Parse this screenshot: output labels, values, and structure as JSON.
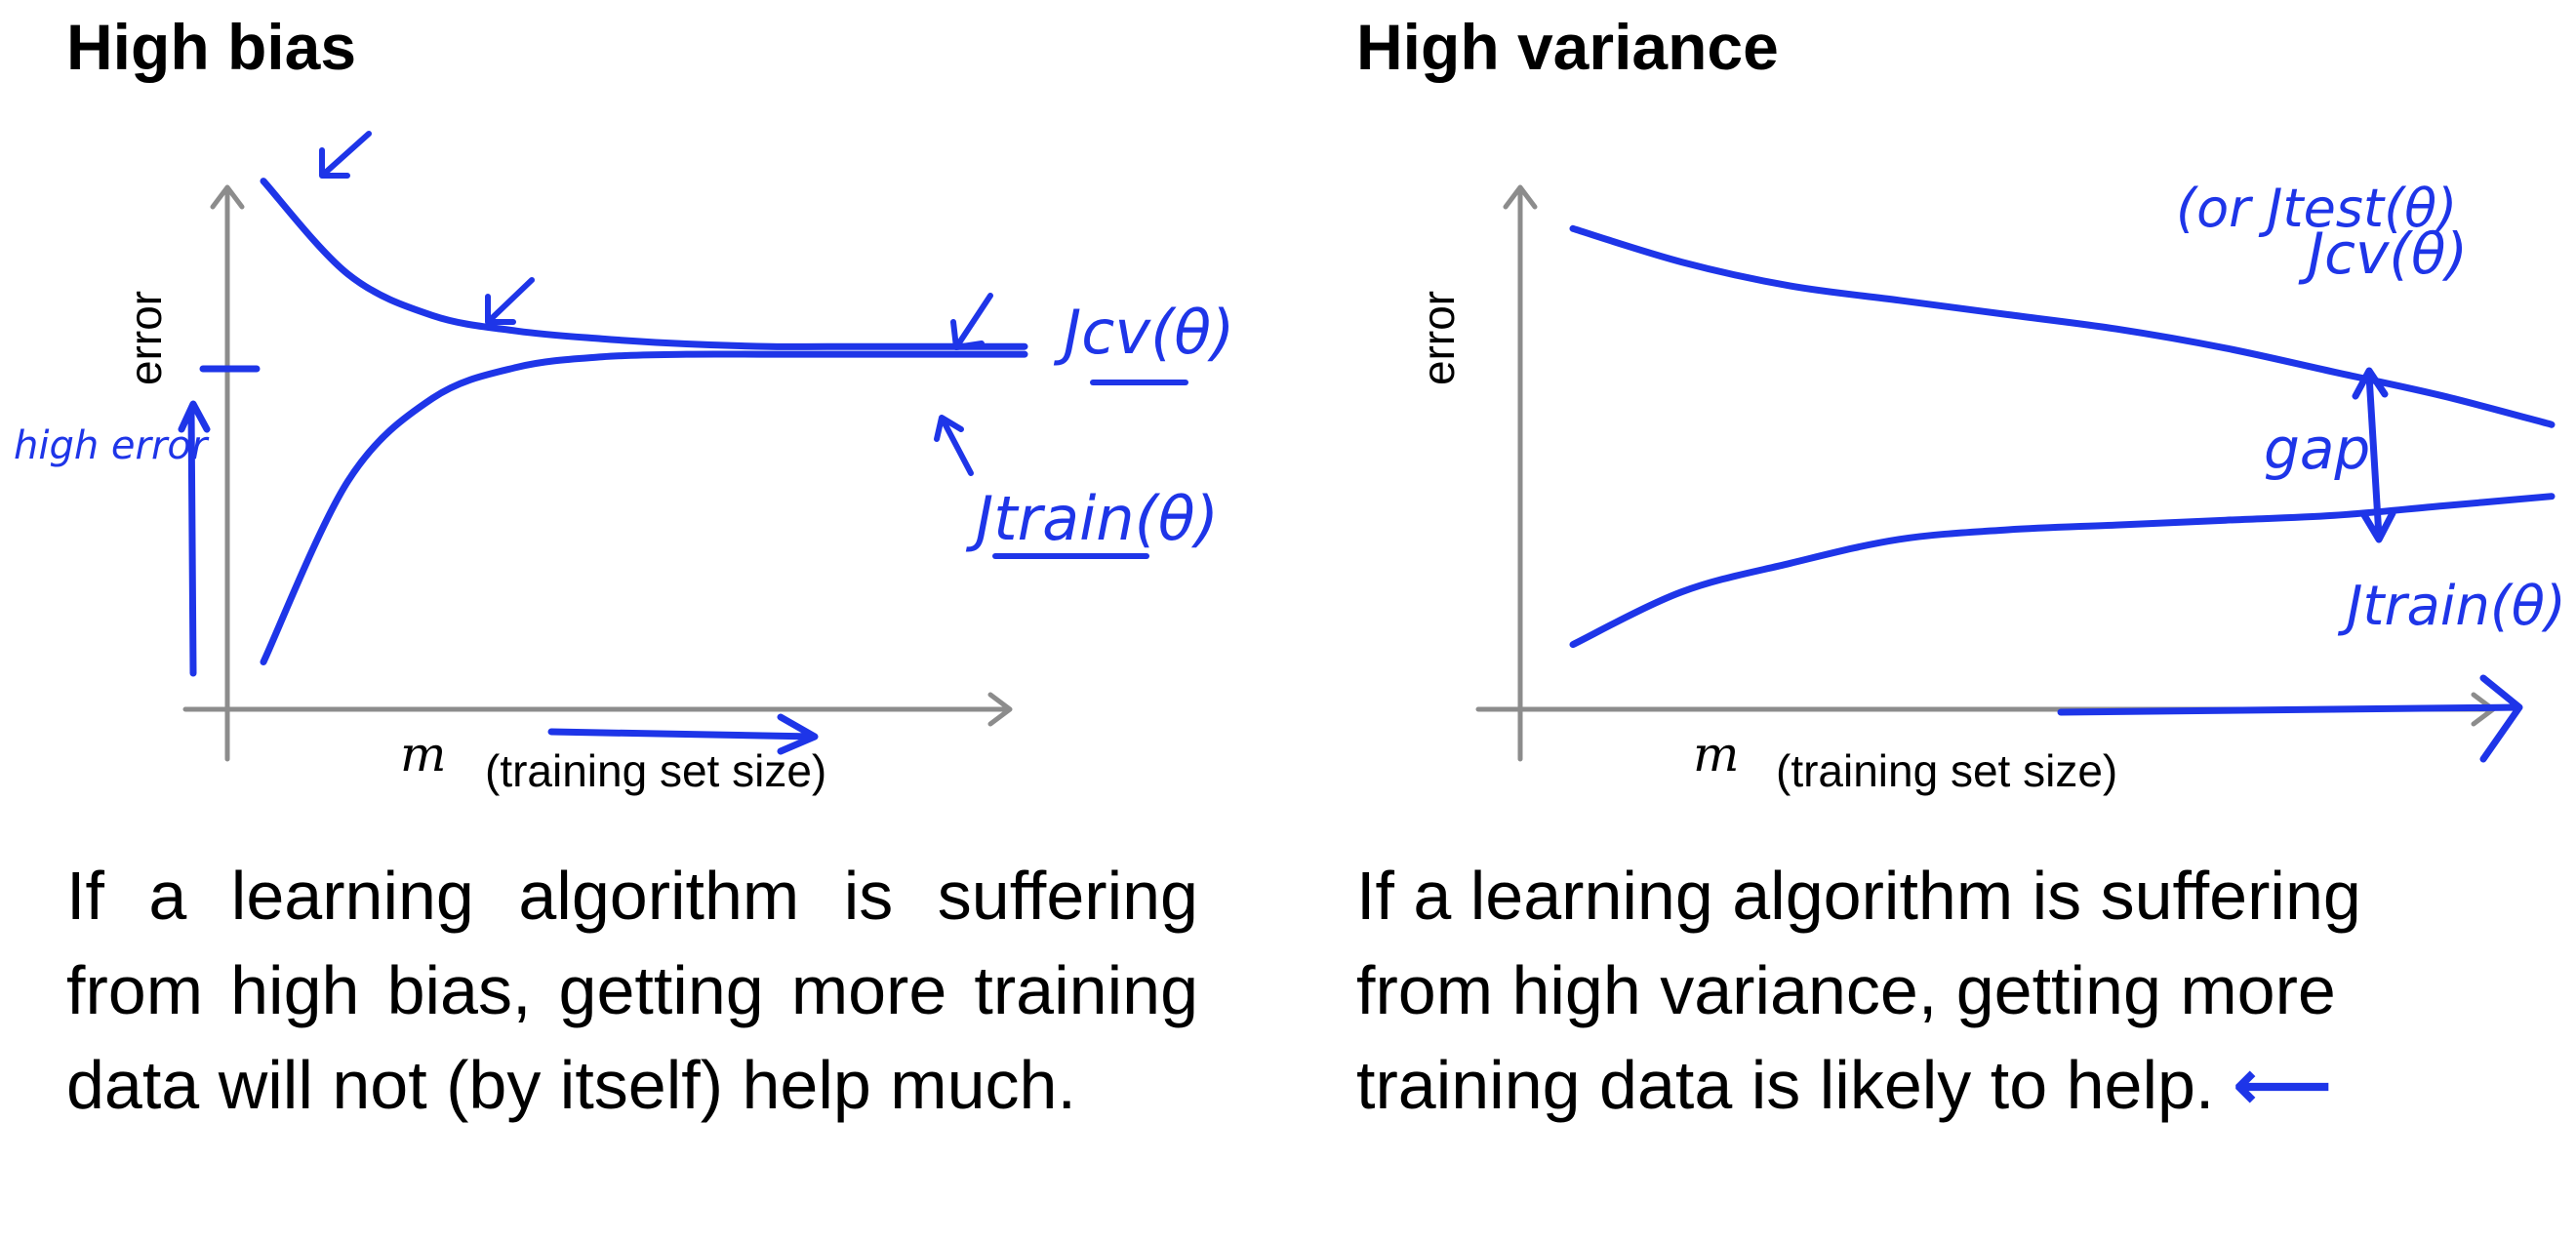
{
  "panels": {
    "left": {
      "title": "High bias",
      "ylabel": "error",
      "xlabel_symbol": "m",
      "xlabel_text": "(training set size)",
      "annotations": {
        "cv_curve": "Jcv(θ)",
        "train_curve": "Jtrain(θ)",
        "high_error": "high error"
      },
      "caption": "If a learning algorithm is suffering from high bias, getting more training data will not (by itself) help much."
    },
    "right": {
      "title": "High variance",
      "ylabel": "error",
      "xlabel_symbol": "m",
      "xlabel_text": "(training set size)",
      "annotations": {
        "cv_curve": "Jcv(θ)",
        "test_curve": "(or Jtest(θ)",
        "train_curve": "Jtrain(θ)",
        "gap": "gap"
      },
      "caption": "If a learning algorithm is suffering from high variance, getting more training data is likely to help.",
      "caption_arrow": "⟵"
    }
  },
  "colors": {
    "ink": "#1e35e8",
    "axis": "#8c8c8c",
    "text": "#000000"
  },
  "chart_data": [
    {
      "type": "line",
      "title": "High bias",
      "xlabel": "m (training set size)",
      "ylabel": "error",
      "x": [
        1,
        2,
        3,
        4,
        5,
        6,
        7,
        8,
        9,
        10
      ],
      "series": [
        {
          "name": "Jcv(θ)",
          "values": [
            0.98,
            0.8,
            0.72,
            0.69,
            0.675,
            0.665,
            0.66,
            0.66,
            0.66,
            0.66
          ]
        },
        {
          "name": "Jtrain(θ)",
          "values": [
            0.05,
            0.4,
            0.56,
            0.62,
            0.64,
            0.645,
            0.645,
            0.645,
            0.645,
            0.645
          ]
        }
      ],
      "grid": false
    },
    {
      "type": "line",
      "title": "High variance",
      "xlabel": "m (training set size)",
      "ylabel": "error",
      "x": [
        1,
        2,
        3,
        4,
        5,
        6,
        7,
        8,
        9,
        10
      ],
      "series": [
        {
          "name": "Jcv(θ)",
          "values": [
            0.93,
            0.86,
            0.81,
            0.78,
            0.75,
            0.72,
            0.68,
            0.63,
            0.58,
            0.52
          ]
        },
        {
          "name": "Jtrain(θ)",
          "values": [
            0.06,
            0.17,
            0.23,
            0.28,
            0.3,
            0.31,
            0.32,
            0.33,
            0.35,
            0.37
          ]
        }
      ],
      "grid": false
    }
  ]
}
